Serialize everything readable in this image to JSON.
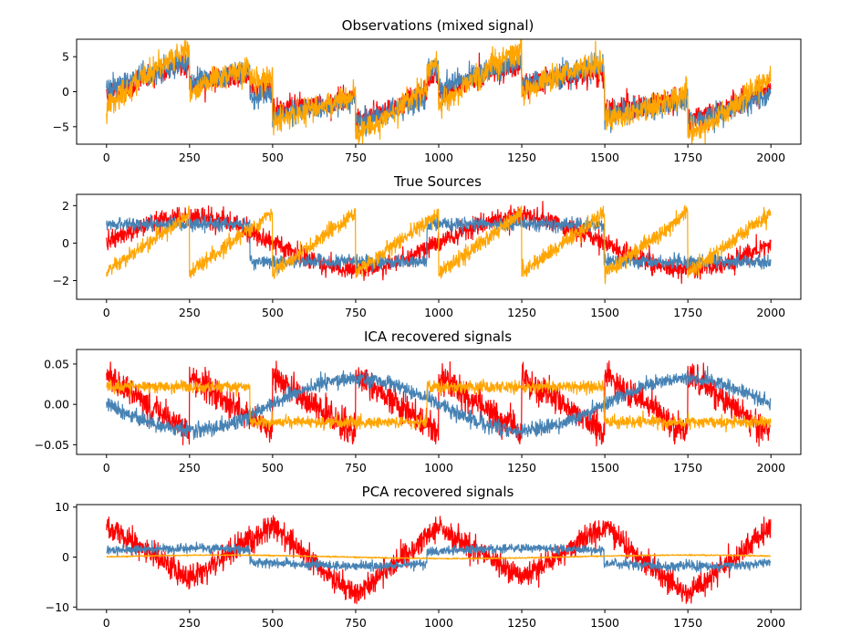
{
  "figure": {
    "background": "#ffffff"
  },
  "colors": {
    "source1": "#ff0000",
    "source2": "#4682b4",
    "source3": "#ffa500"
  },
  "chart_data": [
    {
      "type": "line",
      "title": "Observations (mixed signal)",
      "xlim": [
        -90,
        2090
      ],
      "ylim": [
        -7.5,
        7.5
      ],
      "xticks": [
        0,
        250,
        500,
        750,
        1000,
        1250,
        1500,
        1750,
        2000
      ],
      "yticks": [
        -5,
        0,
        5
      ],
      "series": [
        {
          "color": "#ff0000",
          "generator": {
            "kind": "mix",
            "w": [
              1.0,
              1.0,
              1.0
            ],
            "noise": 0.8,
            "seed": 11
          },
          "values_at_x": {
            "0": -1.0,
            "240": 3.5,
            "260": -1.5,
            "490": 0.5,
            "510": -3.0,
            "740": 2.0,
            "760": -1.0,
            "990": 3.0,
            "1010": 0.0,
            "1240": 2.0,
            "1260": -3.0,
            "1490": 0.0,
            "1510": -3.0,
            "1740": 4.5,
            "1760": 1.0,
            "1990": 0.0
          }
        },
        {
          "color": "#4682b4",
          "generator": {
            "kind": "mix",
            "w": [
              0.5,
              2.0,
              1.0
            ],
            "noise": 0.8,
            "seed": 22
          },
          "values_at_x": {
            "0": 0.5,
            "240": 4.0,
            "260": -2.5,
            "490": -1.5,
            "510": -4.0,
            "740": 3.0,
            "760": -1.5,
            "990": -2.5,
            "1010": 2.5,
            "1240": 2.0,
            "1260": -2.0,
            "1490": -2.5,
            "1510": -4.0,
            "1740": 5.0,
            "1760": 2.0,
            "1990": -1.0
          }
        },
        {
          "color": "#ffa500",
          "generator": {
            "kind": "mix",
            "w": [
              1.5,
              1.0,
              2.0
            ],
            "noise": 0.9,
            "seed": 33
          },
          "values_at_x": {
            "0": -1.5,
            "240": 6.0,
            "260": -1.5,
            "490": 0.5,
            "510": -5.0,
            "740": 2.0,
            "760": -1.0,
            "990": 3.5,
            "1010": 0.0,
            "1240": 2.5,
            "1260": -4.0,
            "1490": -1.0,
            "1510": -4.5,
            "1740": 6.5,
            "1760": 1.5,
            "1990": 1.0
          }
        }
      ]
    },
    {
      "type": "line",
      "title": "True Sources",
      "xlim": [
        -90,
        2090
      ],
      "ylim": [
        -3.0,
        2.6
      ],
      "xticks": [
        0,
        250,
        500,
        750,
        1000,
        1250,
        1500,
        1750,
        2000
      ],
      "yticks": [
        -2,
        0,
        2
      ],
      "series": [
        {
          "color": "#ff0000",
          "generator": {
            "kind": "sine",
            "period": 1000,
            "amp": 1.4,
            "noise": 0.25,
            "seed": 1
          },
          "values_at_x": {
            "0": 0.0,
            "250": 1.4,
            "500": 0.0,
            "750": -1.4,
            "1000": 0.0,
            "1250": 1.4,
            "1500": 0.0,
            "1750": -1.4,
            "2000": 0.0
          }
        },
        {
          "color": "#4682b4",
          "generator": {
            "kind": "square",
            "period": 1066,
            "amp": 1.0,
            "noise": 0.18,
            "seed": 2
          },
          "values_at_x": {
            "0": 1.0,
            "250": 1.0,
            "300": -1.0,
            "500": -1.0,
            "550": 1.0,
            "760": 1.0,
            "800": -1.0,
            "1050": -1.0,
            "1100": 1.0,
            "1300": 1.0,
            "1350": -1.0,
            "1550": -1.0,
            "1600": 1.0,
            "1850": -1.0,
            "2000": -1.0
          }
        },
        {
          "color": "#ffa500",
          "generator": {
            "kind": "saw",
            "period": 250,
            "amp": 1.6,
            "noise": 0.22,
            "seed": 3
          },
          "values_at_x": {
            "0": -1.6,
            "249": 1.6,
            "250": -1.6,
            "499": 1.6,
            "500": -1.6,
            "749": 1.6,
            "750": -1.6,
            "999": 1.6,
            "1000": -1.6,
            "1249": 1.6,
            "1250": -1.6,
            "1499": 1.6,
            "1500": -1.6,
            "1749": 1.6,
            "1750": -1.6,
            "2000": 1.6
          }
        }
      ]
    },
    {
      "type": "line",
      "title": "ICA recovered signals",
      "xlim": [
        -90,
        2090
      ],
      "ylim": [
        -0.062,
        0.068
      ],
      "xticks": [
        0,
        250,
        500,
        750,
        1000,
        1250,
        1500,
        1750,
        2000
      ],
      "yticks": [
        -0.05,
        0.0,
        0.05
      ],
      "ytick_labels": [
        "−0.05",
        "0.00",
        "0.05"
      ],
      "series": [
        {
          "color": "#ff0000",
          "generator": {
            "kind": "saw",
            "period": 250,
            "amp": -0.035,
            "noise": 0.009,
            "seed": 4
          },
          "values_at_x": {
            "0": 0.035,
            "249": -0.035,
            "250": 0.035,
            "499": -0.035,
            "500": 0.035,
            "749": -0.035,
            "750": 0.035,
            "999": -0.035,
            "1000": 0.035,
            "1249": -0.035,
            "1250": 0.035,
            "1499": -0.035,
            "1500": 0.035,
            "1749": -0.035,
            "1750": 0.035,
            "2000": -0.035
          }
        },
        {
          "color": "#4682b4",
          "generator": {
            "kind": "sine",
            "period": 1000,
            "amp": -0.032,
            "noise": 0.0045,
            "seed": 5
          },
          "values_at_x": {
            "0": 0.0,
            "250": -0.032,
            "500": 0.0,
            "750": 0.032,
            "1000": 0.0,
            "1250": -0.032,
            "1500": 0.0,
            "1750": 0.032,
            "2000": 0.0
          }
        },
        {
          "color": "#ffa500",
          "generator": {
            "kind": "square",
            "period": 1066,
            "amp": 0.022,
            "noise": 0.0035,
            "seed": 6
          },
          "values_at_x": {
            "0": 0.022,
            "250": 0.022,
            "300": -0.022,
            "500": -0.022,
            "550": 0.022,
            "760": 0.022,
            "800": -0.022,
            "1050": -0.022,
            "1100": 0.022,
            "1300": 0.022,
            "1350": -0.022,
            "1550": -0.022,
            "1600": 0.022,
            "1850": -0.022,
            "2000": -0.022
          }
        }
      ]
    },
    {
      "type": "line",
      "title": "PCA recovered signals",
      "xlim": [
        -90,
        2090
      ],
      "ylim": [
        -10.5,
        10.5
      ],
      "xticks": [
        0,
        250,
        500,
        750,
        1000,
        1250,
        1500,
        1750,
        2000
      ],
      "yticks": [
        -10,
        0,
        10
      ],
      "series": [
        {
          "color": "#ff0000",
          "generator": {
            "kind": "mixpca",
            "noise": 1.2,
            "seed": 7
          },
          "values_at_x": {
            "0": 2.0,
            "240": -8.0,
            "260": 4.0,
            "490": -1.0,
            "510": 8.0,
            "740": -5.0,
            "760": 6.0,
            "990": -2.0,
            "1010": 4.0,
            "1240": -2.0,
            "1260": 4.0,
            "1490": 3.0,
            "1510": 8.0,
            "1740": -9.0,
            "1760": 1.0,
            "1990": 2.0
          }
        },
        {
          "color": "#4682b4",
          "generator": {
            "kind": "sqsin",
            "noise": 0.45,
            "seed": 8
          },
          "values_at_x": {
            "0": 1.5,
            "250": -0.5,
            "500": -0.8,
            "550": 2.0,
            "760": 0.5,
            "1000": -1.5,
            "1100": 0.5,
            "1250": 1.5,
            "1350": -0.5,
            "1500": -0.5,
            "1600": 1.5,
            "1850": -1.0,
            "2000": -1.0
          }
        },
        {
          "color": "#ffa500",
          "generator": {
            "kind": "smooth",
            "noise": 0.06,
            "seed": 9
          },
          "values_at_x": {
            "0": 0.0,
            "250": 0.0,
            "500": 0.5,
            "750": 0.5,
            "1000": 0.0,
            "1250": 0.0,
            "1500": 0.0,
            "1750": 0.0,
            "2000": 0.3
          }
        }
      ]
    }
  ]
}
